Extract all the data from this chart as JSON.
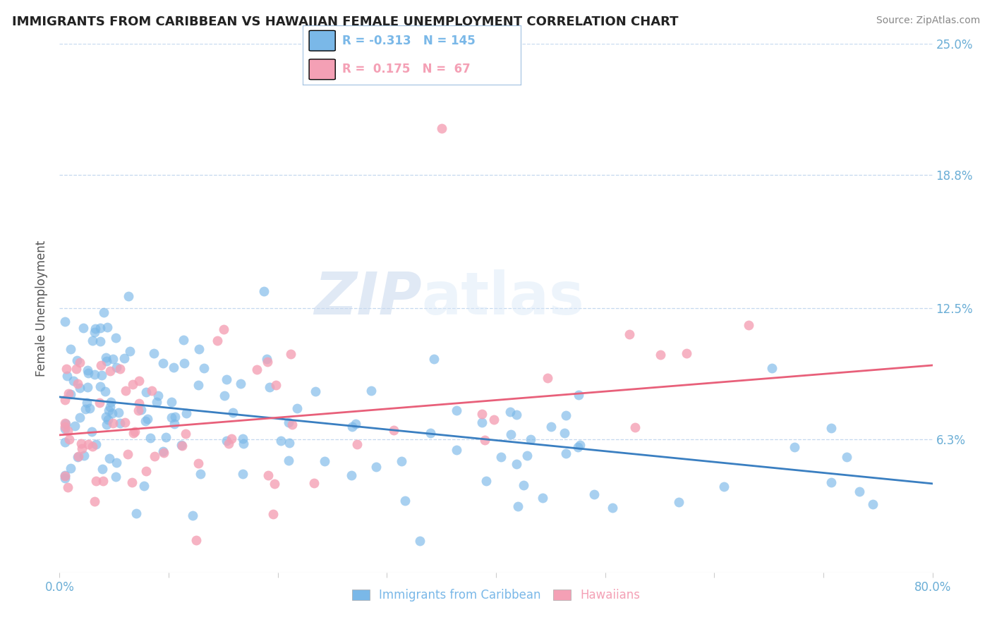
{
  "title": "IMMIGRANTS FROM CARIBBEAN VS HAWAIIAN FEMALE UNEMPLOYMENT CORRELATION CHART",
  "source_text": "Source: ZipAtlas.com",
  "ylabel": "Female Unemployment",
  "watermark_zip": "ZIP",
  "watermark_atlas": "atlas",
  "xlim": [
    0.0,
    80.0
  ],
  "ylim": [
    0.0,
    25.0
  ],
  "ytick_vals": [
    6.3,
    12.5,
    18.8,
    25.0
  ],
  "ytick_labels": [
    "6.3%",
    "12.5%",
    "18.8%",
    "25.0%"
  ],
  "xtick_vals": [
    0.0,
    10.0,
    20.0,
    30.0,
    40.0,
    50.0,
    60.0,
    70.0,
    80.0
  ],
  "xtick_labels": [
    "0.0%",
    "",
    "",
    "",
    "",
    "",
    "",
    "",
    "80.0%"
  ],
  "series1_name": "Immigrants from Caribbean",
  "series1_R": "-0.313",
  "series1_N": "145",
  "series1_color": "#7ab8e8",
  "series2_name": "Hawaiians",
  "series2_R": "0.175",
  "series2_N": "67",
  "series2_color": "#f4a0b5",
  "title_fontsize": 13,
  "axis_label_color": "#6baed6",
  "grid_color": "#c5d8ef",
  "background_color": "#ffffff",
  "blue_line_x0": 0,
  "blue_line_x1": 80,
  "blue_line_y0": 8.3,
  "blue_line_y1": 4.2,
  "pink_line_x0": 0,
  "pink_line_x1": 80,
  "pink_line_y0": 6.5,
  "pink_line_y1": 9.8
}
